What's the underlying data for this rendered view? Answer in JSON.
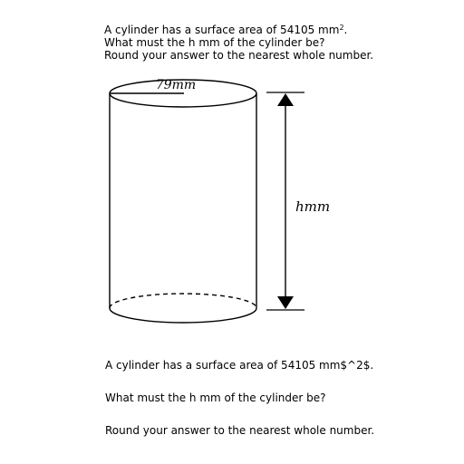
{
  "header": {
    "line1_prefix": "A cylinder has a surface area of 54105 mm",
    "line1_sup": "2",
    "line1_suffix": ".",
    "line2": "What must the h mm of the cylinder be?",
    "line3": "Round your answer to the nearest whole number."
  },
  "figure": {
    "radius_label": "79mm",
    "height_label": "hmm"
  },
  "body": {
    "line1": "A cylinder has a surface area of 54105 mm$^2$.",
    "line2": "What must the h mm of the cylinder be?",
    "line3": "Round your answer to the nearest whole number."
  }
}
